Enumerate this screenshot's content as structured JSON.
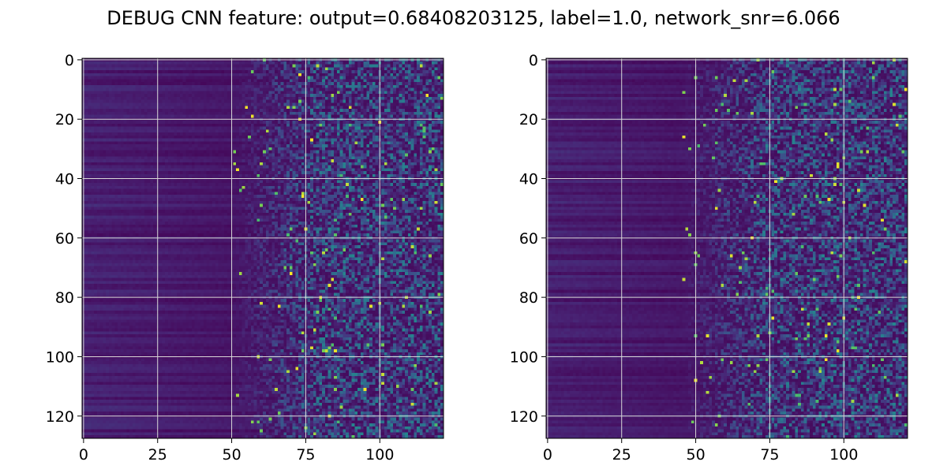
{
  "figure": {
    "title": "DEBUG CNN feature: output=0.68408203125, label=1.0, network_snr=6.066"
  },
  "chart_data": [
    {
      "type": "heatmap",
      "title": "",
      "xlabel": "",
      "ylabel": "",
      "shape": [
        128,
        122
      ],
      "xlim": [
        -0.5,
        121.5
      ],
      "ylim": [
        127.5,
        -0.5
      ],
      "xticks": [
        0,
        25,
        50,
        75,
        100
      ],
      "yticks": [
        0,
        20,
        40,
        60,
        80,
        100,
        120
      ],
      "colormap": "viridis",
      "grid": true,
      "description_of_values": "values low (dark purple) for x<50, increasing noisy intensity toward x>70, bright yellow outliers scattered",
      "seed": 7
    },
    {
      "type": "heatmap",
      "title": "",
      "xlabel": "",
      "ylabel": "",
      "shape": [
        128,
        122
      ],
      "xlim": [
        -0.5,
        121.5
      ],
      "ylim": [
        127.5,
        -0.5
      ],
      "xticks": [
        0,
        25,
        50,
        75,
        100
      ],
      "yticks": [
        0,
        20,
        40,
        60,
        80,
        100,
        120
      ],
      "colormap": "viridis",
      "grid": true,
      "description_of_values": "similar pattern, noise onset near x=60, fewer bright outliers",
      "seed": 19
    }
  ],
  "colors": {
    "viridis_low": "#440154",
    "viridis_high": "#fde725",
    "grid": "#d9d9d9"
  }
}
